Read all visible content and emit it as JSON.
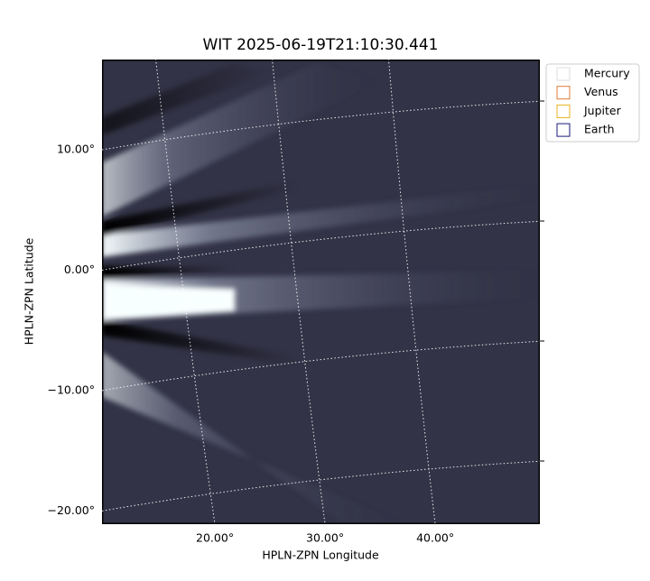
{
  "chart_data": {
    "type": "image",
    "title": "WIT 2025-06-19T21:10:30.441",
    "x_label": "HPLN-ZPN Longitude",
    "y_label": "HPLN-ZPN Latitude",
    "xlim": [
      9.75,
      49.5
    ],
    "ylim": [
      -21.1,
      17.5
    ],
    "xticks": [
      {
        "value": 20,
        "label": "20.00°"
      },
      {
        "value": 30,
        "label": "30.00°"
      },
      {
        "value": 40,
        "label": "40.00°"
      }
    ],
    "yticks": [
      {
        "value": -20,
        "label": "−20.00°"
      },
      {
        "value": -10,
        "label": "−10.00°"
      },
      {
        "value": 0,
        "label": "0.00°"
      },
      {
        "value": 10,
        "label": "10.00°"
      }
    ],
    "grid": true,
    "legend": "upper right",
    "series": [
      {
        "name": "Mercury",
        "color": "#dddddd"
      },
      {
        "name": "Venus",
        "color": "#e07b39"
      },
      {
        "name": "Jupiter",
        "color": "#e8b020"
      },
      {
        "name": "Earth",
        "color": "#1a1a7a"
      }
    ]
  }
}
